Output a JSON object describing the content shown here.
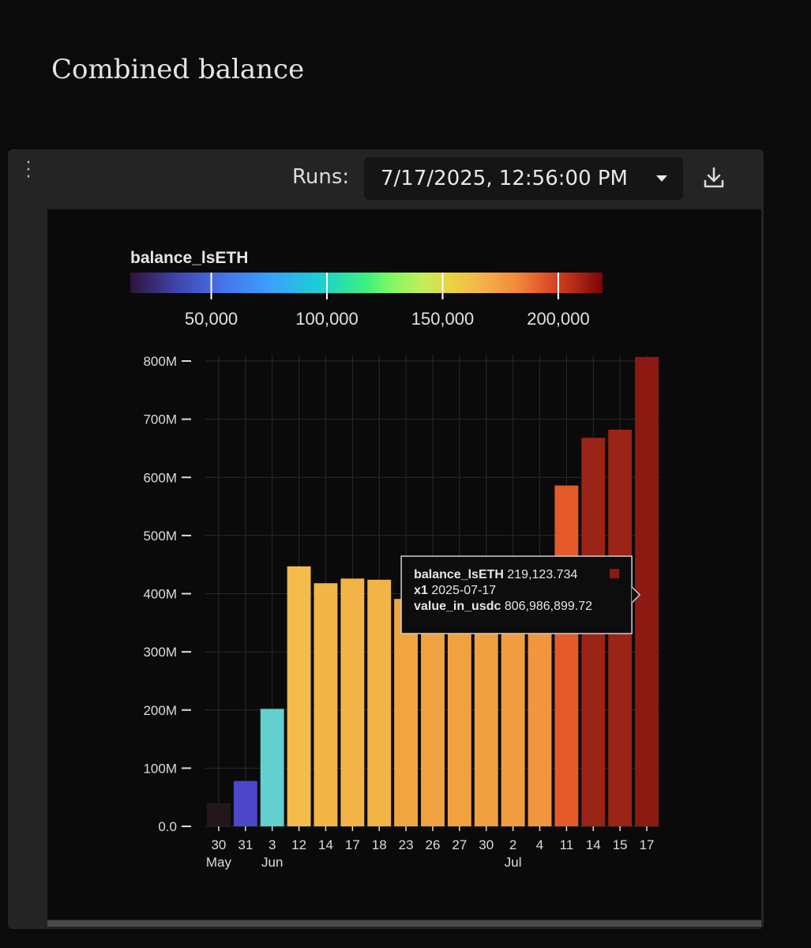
{
  "page": {
    "title": "Combined balance"
  },
  "toolbar": {
    "runs_label": "Runs:",
    "runs_selected": "7/17/2025, 12:56:00 PM",
    "menu_icon": "vertical-dots-icon",
    "download_icon": "download-icon"
  },
  "chart_data": {
    "type": "bar",
    "color_legend": {
      "title": "balance_lsETH",
      "ticks": [
        "50,000",
        "100,000",
        "150,000",
        "200,000"
      ],
      "tick_values": [
        50000,
        100000,
        150000,
        200000
      ],
      "domain": [
        15000,
        219123.734
      ]
    },
    "y_axis": {
      "ticks": [
        "0.0",
        "100M",
        "200M",
        "300M",
        "400M",
        "500M",
        "600M",
        "700M",
        "800M"
      ],
      "tick_values": [
        0,
        100000000,
        200000000,
        300000000,
        400000000,
        500000000,
        600000000,
        700000000,
        800000000
      ],
      "ylim": [
        0,
        800000000
      ]
    },
    "x_axis": {
      "ticks": [
        "30",
        "31",
        "3",
        "12",
        "14",
        "17",
        "18",
        "23",
        "26",
        "27",
        "30",
        "2",
        "4",
        "11",
        "14",
        "15",
        "17"
      ],
      "month_labels": [
        {
          "index": 0,
          "label": "May"
        },
        {
          "index": 2,
          "label": "Jun"
        },
        {
          "index": 11,
          "label": "Jul"
        }
      ]
    },
    "grid": true,
    "series": [
      {
        "dates": [
          "2025-05-30",
          "2025-05-31",
          "2025-06-03",
          "2025-06-12",
          "2025-06-14",
          "2025-06-17",
          "2025-06-18",
          "2025-06-23",
          "2025-06-26",
          "2025-06-27",
          "2025-06-30",
          "2025-07-02",
          "2025-07-04",
          "2025-07-11",
          "2025-07-14",
          "2025-07-15",
          "2025-07-17"
        ],
        "values": [
          40000000,
          78000000,
          202000000,
          447000000,
          418000000,
          426000000,
          424000000,
          391000000,
          385000000,
          385000000,
          384000000,
          380000000,
          405000000,
          586000000,
          668000000,
          682000000,
          806986899.72
        ],
        "balance": [
          15000,
          35000,
          75000,
          140000,
          140000,
          142000,
          142000,
          150000,
          152000,
          152000,
          153000,
          155000,
          160000,
          183000,
          205000,
          208000,
          219123.734
        ],
        "colors": [
          "#22181c",
          "#4c47c8",
          "#63cfcf",
          "#f2bb4b",
          "#f2b648",
          "#f2b347",
          "#f2b347",
          "#f0a640",
          "#f0a240",
          "#f0a240",
          "#f0a040",
          "#f09d40",
          "#ef963e",
          "#e45a2a",
          "#9a2416",
          "#9a2416",
          "#8c1a12"
        ]
      }
    ],
    "tooltip": {
      "rows": [
        {
          "key": "balance_lsETH",
          "value": "219,123.734"
        },
        {
          "key": "x1",
          "value": "2025-07-17"
        },
        {
          "key": "value_in_usdc",
          "value": "806,986,899.72"
        }
      ],
      "swatch_color": "#8c1a12"
    }
  }
}
